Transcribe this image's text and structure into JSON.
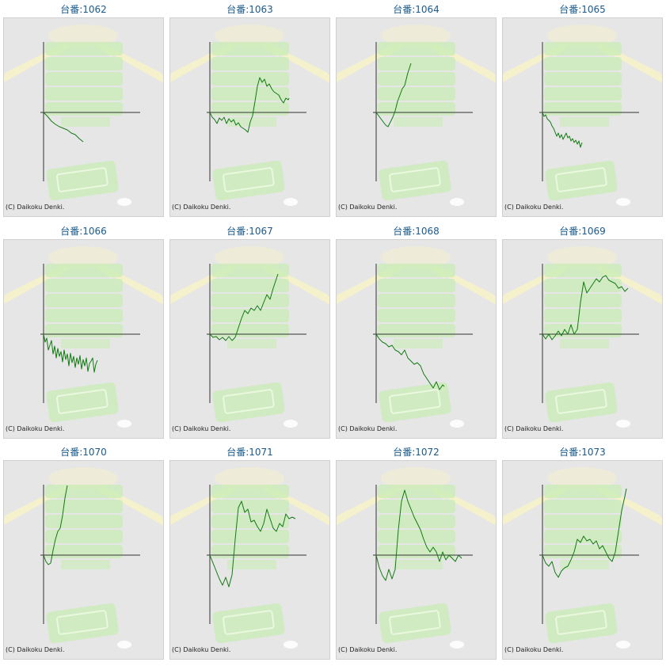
{
  "copyright": "(C) Daikoku Denki.",
  "colors": {
    "line": "#117a11",
    "axis": "#333333",
    "background": "#e6e6e6",
    "title": "#1a5a8c",
    "art_green": "#c8ecb4",
    "art_rays": "#f4f1cc"
  },
  "chart_data": [
    {
      "type": "line",
      "title": "台番:1062",
      "x": [
        0,
        5,
        10,
        15,
        20,
        25,
        30,
        35,
        40,
        45,
        50
      ],
      "y": [
        0,
        -5,
        -11,
        -15,
        -18,
        -20,
        -22,
        -26,
        -28,
        -33,
        -37
      ]
    },
    {
      "type": "line",
      "title": "台番:1063",
      "x": [
        0,
        3,
        6,
        9,
        12,
        15,
        18,
        21,
        24,
        27,
        30,
        33,
        36,
        39,
        42,
        45,
        48,
        51,
        54,
        57,
        60,
        63,
        66,
        69,
        72,
        75,
        78,
        81,
        84,
        87,
        90,
        93,
        96,
        99,
        100
      ],
      "y": [
        0,
        -6,
        -9,
        -14,
        -7,
        -10,
        -6,
        -14,
        -8,
        -12,
        -9,
        -16,
        -13,
        -18,
        -20,
        -22,
        -25,
        -12,
        -4,
        14,
        33,
        44,
        38,
        42,
        33,
        36,
        30,
        26,
        24,
        22,
        16,
        12,
        18,
        16,
        18
      ]
    },
    {
      "type": "line",
      "title": "台番:1064",
      "x": [
        0,
        3,
        6,
        9,
        12,
        15,
        18,
        21,
        24,
        27,
        30,
        33,
        36,
        40,
        44
      ],
      "y": [
        0,
        -4,
        -8,
        -12,
        -16,
        -18,
        -12,
        -6,
        2,
        14,
        22,
        30,
        34,
        50,
        62
      ]
    },
    {
      "type": "line",
      "title": "台番:1065",
      "x": [
        0,
        2,
        4,
        6,
        8,
        10,
        12,
        14,
        16,
        18,
        20,
        22,
        24,
        26,
        28,
        30,
        32,
        34,
        36,
        38,
        40,
        42,
        44,
        46,
        48,
        50
      ],
      "y": [
        0,
        -5,
        -3,
        -8,
        -10,
        -12,
        -17,
        -20,
        -25,
        -30,
        -26,
        -32,
        -28,
        -34,
        -30,
        -26,
        -32,
        -30,
        -36,
        -33,
        -38,
        -35,
        -40,
        -36,
        -44,
        -38
      ]
    },
    {
      "type": "line",
      "title": "台番:1066",
      "x": [
        0,
        2,
        4,
        6,
        8,
        10,
        12,
        14,
        16,
        18,
        20,
        22,
        24,
        26,
        28,
        30,
        32,
        34,
        36,
        38,
        40,
        42,
        44,
        46,
        48,
        50,
        52,
        54,
        56,
        58,
        60,
        62,
        64,
        66,
        68
      ],
      "y": [
        0,
        -10,
        -5,
        -20,
        -14,
        -8,
        -25,
        -15,
        -30,
        -18,
        -28,
        -22,
        -35,
        -20,
        -32,
        -25,
        -40,
        -24,
        -36,
        -28,
        -42,
        -30,
        -38,
        -27,
        -44,
        -32,
        -40,
        -30,
        -47,
        -37,
        -34,
        -30,
        -48,
        -38,
        -33
      ]
    },
    {
      "type": "line",
      "title": "台番:1067",
      "x": [
        0,
        4,
        8,
        12,
        16,
        20,
        24,
        28,
        32,
        36,
        40,
        44,
        48,
        52,
        56,
        60,
        64,
        68,
        72,
        76,
        80,
        84,
        86
      ],
      "y": [
        0,
        -4,
        -3,
        -7,
        -4,
        -8,
        -3,
        -8,
        -4,
        8,
        20,
        30,
        26,
        33,
        30,
        36,
        30,
        40,
        50,
        44,
        58,
        70,
        76
      ]
    },
    {
      "type": "line",
      "title": "台番:1068",
      "x": [
        0,
        4,
        8,
        12,
        16,
        20,
        24,
        28,
        32,
        36,
        40,
        44,
        48,
        52,
        56,
        60,
        64,
        68,
        72,
        76,
        80,
        84,
        86
      ],
      "y": [
        0,
        -6,
        -10,
        -12,
        -16,
        -14,
        -20,
        -22,
        -26,
        -20,
        -30,
        -34,
        -38,
        -36,
        -40,
        -50,
        -56,
        -62,
        -68,
        -60,
        -70,
        -64,
        -66
      ]
    },
    {
      "type": "line",
      "title": "台番:1069",
      "x": [
        0,
        4,
        8,
        12,
        16,
        20,
        24,
        28,
        32,
        36,
        40,
        44,
        48,
        52,
        56,
        60,
        64,
        68,
        72,
        76,
        80,
        84,
        88,
        92,
        96,
        100,
        104,
        108
      ],
      "y": [
        0,
        -6,
        0,
        -7,
        -2,
        4,
        -2,
        6,
        0,
        12,
        0,
        6,
        40,
        66,
        52,
        58,
        64,
        70,
        66,
        72,
        74,
        68,
        66,
        64,
        58,
        60,
        54,
        58
      ]
    },
    {
      "type": "line",
      "title": "台番:1070",
      "x": [
        0,
        3,
        6,
        9,
        12,
        15,
        18,
        21,
        24,
        27,
        30
      ],
      "y": [
        0,
        -8,
        -12,
        -10,
        6,
        20,
        30,
        34,
        50,
        72,
        88
      ]
    },
    {
      "type": "line",
      "title": "台番:1071",
      "x": [
        0,
        4,
        8,
        12,
        16,
        20,
        24,
        28,
        32,
        36,
        40,
        44,
        48,
        52,
        56,
        60,
        64,
        68,
        72,
        76,
        80,
        84,
        88,
        92,
        96,
        100,
        104,
        108
      ],
      "y": [
        0,
        -10,
        -20,
        -30,
        -38,
        -28,
        -40,
        -25,
        20,
        60,
        68,
        54,
        58,
        42,
        44,
        36,
        30,
        40,
        58,
        46,
        34,
        30,
        40,
        36,
        52,
        46,
        48,
        46
      ]
    },
    {
      "type": "line",
      "title": "台番:1072",
      "x": [
        0,
        4,
        8,
        12,
        16,
        20,
        24,
        28,
        32,
        36,
        40,
        44,
        48,
        52,
        56,
        60,
        64,
        68,
        72,
        76,
        80,
        84,
        88,
        92,
        96,
        100,
        104,
        108
      ],
      "y": [
        0,
        -16,
        -26,
        -32,
        -18,
        -30,
        -18,
        32,
        68,
        82,
        68,
        58,
        48,
        40,
        32,
        20,
        10,
        4,
        10,
        4,
        -8,
        4,
        -6,
        0,
        -4,
        -8,
        0,
        -4
      ]
    },
    {
      "type": "line",
      "title": "台番:1073",
      "x": [
        0,
        4,
        8,
        12,
        16,
        20,
        24,
        28,
        32,
        36,
        40,
        44,
        48,
        52,
        56,
        60,
        64,
        68,
        72,
        76,
        80,
        84,
        88,
        92,
        96,
        100,
        104,
        106
      ],
      "y": [
        0,
        -10,
        -14,
        -8,
        -22,
        -28,
        -20,
        -16,
        -14,
        -6,
        4,
        20,
        16,
        24,
        18,
        20,
        14,
        18,
        8,
        12,
        4,
        -4,
        -8,
        4,
        30,
        56,
        74,
        84
      ]
    }
  ]
}
